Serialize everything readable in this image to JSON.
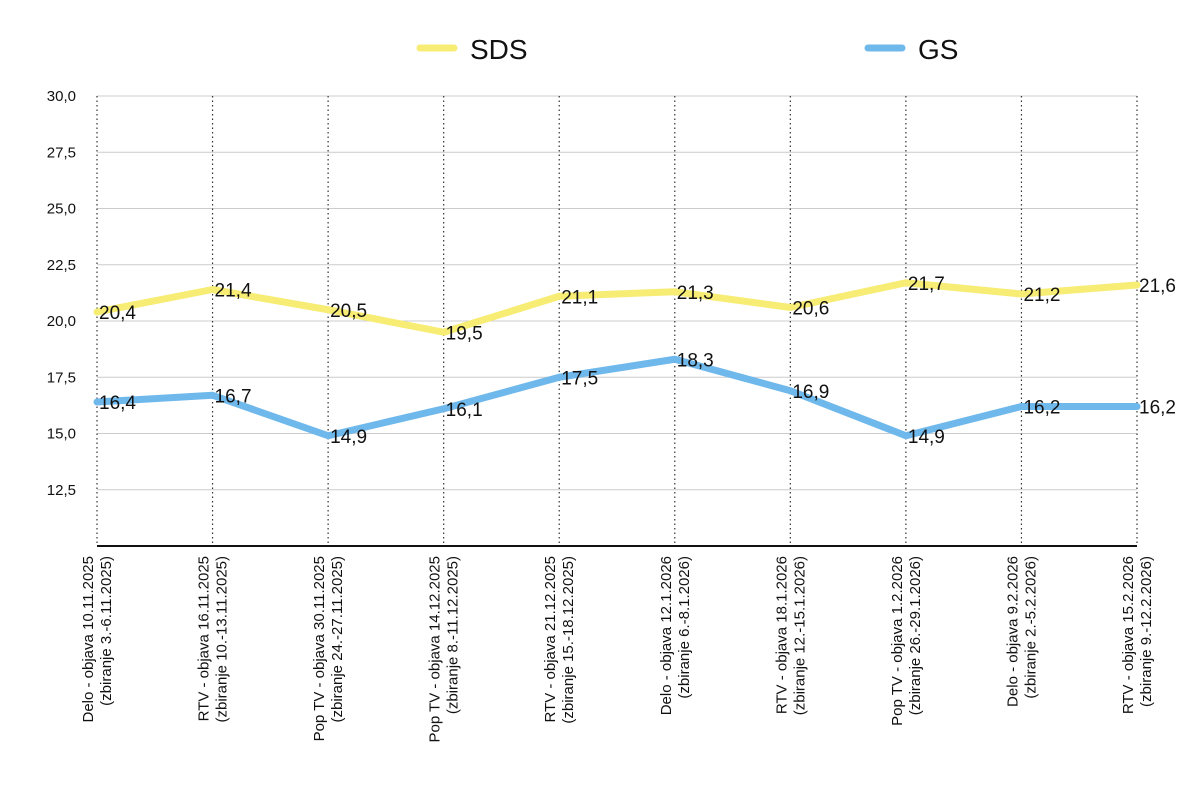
{
  "chart_data": {
    "type": "line",
    "title": "",
    "xlabel": "",
    "ylabel": "",
    "ylim": [
      10,
      30
    ],
    "yticks": [
      "30,0",
      "27,5",
      "25,0",
      "22,5",
      "20,0",
      "17,5",
      "15,0",
      "12,5"
    ],
    "categories": [
      [
        "Delo - objava 10.11.2025",
        "(zbiranje 3.-6.11.2025)"
      ],
      [
        "RTV - objava 16.11.2025",
        "(zbiranje 10.-13.11.2025)"
      ],
      [
        "Pop TV - objava 30.11.2025",
        "(zbiranje 24.-27.11.2025)"
      ],
      [
        "Pop TV - objava 14.12.2025",
        "(zbiranje 8.-11.12.2025)"
      ],
      [
        "RTV - objava 21.12.2025",
        "(zbiranje 15.-18.12.2025)"
      ],
      [
        "Delo - objava 12.1.2026",
        "(zbiranje 6.-8.1.2026)"
      ],
      [
        "RTV - objava 18.1.2026",
        "(zbiranje 12.-15.1.2026)"
      ],
      [
        "Pop TV - objava 1.2.2026",
        "(zbiranje 26.-29.1.2026)"
      ],
      [
        "Delo - objava 9.2.2026",
        "(zbiranje 2.-5.2.2026)"
      ],
      [
        "RTV - objava 15.2.2026",
        "(zbiranje 9.-12.2.2026)"
      ]
    ],
    "legend_position": "top",
    "series": [
      {
        "name": "SDS",
        "color": "#f7ec74",
        "values": [
          20.4,
          21.4,
          20.5,
          19.5,
          21.1,
          21.3,
          20.6,
          21.7,
          21.2,
          21.6
        ],
        "labels": [
          "20,4",
          "21,4",
          "20,5",
          "19,5",
          "21,1",
          "21,3",
          "20,6",
          "21,7",
          "21,2",
          "21,6"
        ]
      },
      {
        "name": "GS",
        "color": "#6fb8ec",
        "values": [
          16.4,
          16.7,
          14.9,
          16.1,
          17.5,
          18.3,
          16.9,
          14.9,
          16.2,
          16.2
        ],
        "labels": [
          "16,4",
          "16,7",
          "14,9",
          "16,1",
          "17,5",
          "18,3",
          "16,9",
          "14,9",
          "16,2",
          "16,2"
        ]
      }
    ]
  }
}
